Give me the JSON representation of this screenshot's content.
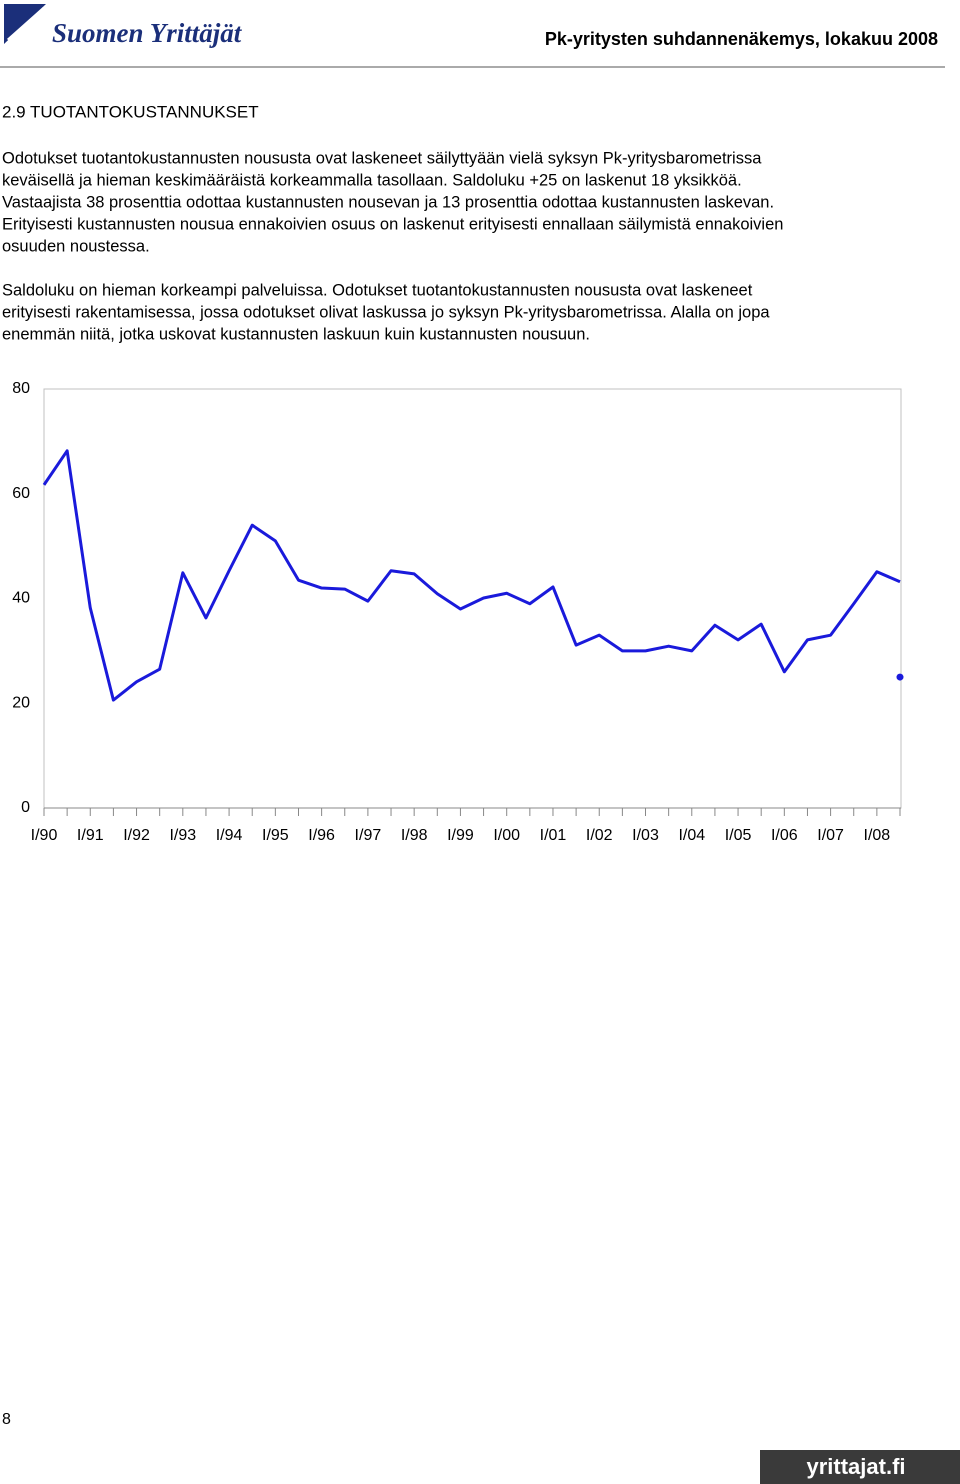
{
  "header": {
    "logo": "Suomen Yrittäjät",
    "title": "Pk-yritysten suhdannenäkemys, lokakuu 2008"
  },
  "section": {
    "heading": "2.9 TUOTANTOKUSTANNUKSET",
    "paragraphs": [
      [
        "Odotukset tuotantokustannusten noususta ovat laskeneet säilyttyään vielä syksyn Pk-yritysbarometrissa",
        "keväisellä ja hieman keskimääräistä korkeammalla tasollaan. Saldoluku +25 on laskenut 18 yksikköä.",
        "Vastaajista 38 prosenttia odottaa kustannusten nousevan ja 13 prosenttia odottaa kustannusten laskevan.",
        "Erityisesti kustannusten nousua ennakoivien osuus on laskenut erityisesti ennallaan säilymistä ennakoivien",
        "osuuden noustessa."
      ],
      [
        "Saldoluku on hieman korkeampi palveluissa. Odotukset tuotantokustannusten noususta ovat laskeneet",
        "erityisesti rakentamisessa, jossa odotukset olivat laskussa jo syksyn Pk-yritysbarometrissa. Alalla on jopa",
        "enemmän niitä, jotka uskovat kustannusten laskuun kuin kustannusten nousuun."
      ]
    ]
  },
  "chart_data": {
    "type": "line",
    "categories": [
      "I/90",
      null,
      "I/91",
      null,
      "I/92",
      null,
      "I/93",
      null,
      "I/94",
      null,
      "I/95",
      null,
      "I/96",
      null,
      "I/97",
      null,
      "I/98",
      null,
      "I/99",
      null,
      "I/00",
      null,
      "I/01",
      null,
      "I/02",
      null,
      "I/03",
      null,
      "I/04",
      null,
      "I/05",
      null,
      "I/06",
      null,
      "I/07",
      null,
      "I/08",
      null
    ],
    "series": [
      {
        "color": "#1a1adb",
        "values": [
          61.7,
          68.2,
          38.2,
          20.6,
          24.1,
          26.5,
          44.9,
          36.3,
          45.3,
          54.0,
          51.0,
          43.5,
          42.0,
          41.8,
          39.5,
          45.3,
          44.7,
          40.9,
          38.0,
          40.1,
          41.0,
          39.0,
          42.2,
          31.1,
          33.0,
          30.0,
          30.0,
          30.9,
          30.0,
          34.9,
          32.1,
          35.1,
          26.0,
          32.1,
          33.0,
          39.0,
          45.1,
          43.2
        ]
      },
      {
        "color": "#1a1adb",
        "values": [
          null,
          null,
          null,
          null,
          null,
          null,
          null,
          null,
          null,
          null,
          null,
          null,
          null,
          null,
          null,
          null,
          null,
          null,
          null,
          null,
          null,
          null,
          null,
          null,
          null,
          null,
          null,
          null,
          null,
          null,
          null,
          null,
          null,
          null,
          null,
          null,
          null,
          25
        ]
      }
    ],
    "ylim": [
      0,
      80
    ],
    "yticks": [
      0,
      20,
      40,
      60,
      80
    ],
    "grid": false
  },
  "footer": {
    "page": "8",
    "site": "yrittajat.fi"
  }
}
